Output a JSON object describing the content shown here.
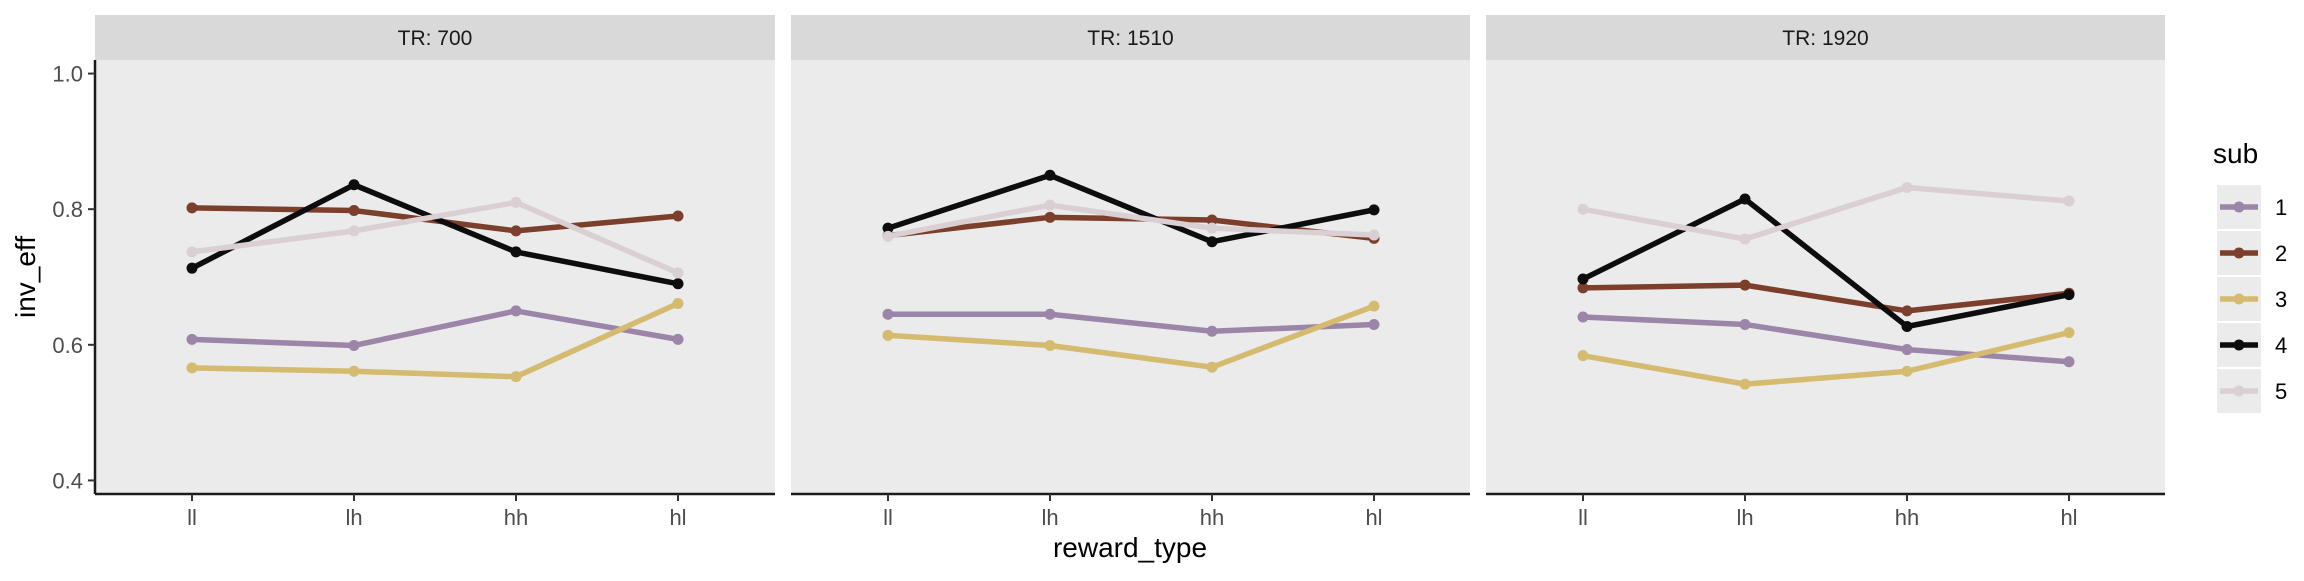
{
  "chart_data": {
    "type": "line",
    "facet_label_prefix": "TR: ",
    "facets": [
      {
        "label": "TR: 700",
        "series": [
          {
            "name": "1",
            "values": [
              0.608,
              0.599,
              0.65,
              0.608
            ]
          },
          {
            "name": "2",
            "values": [
              0.802,
              0.798,
              0.768,
              0.79
            ]
          },
          {
            "name": "3",
            "values": [
              0.566,
              0.561,
              0.553,
              0.661
            ]
          },
          {
            "name": "4",
            "values": [
              0.713,
              0.836,
              0.737,
              0.69
            ]
          },
          {
            "name": "5",
            "values": [
              0.737,
              0.768,
              0.81,
              0.706
            ]
          }
        ]
      },
      {
        "label": "TR: 1510",
        "series": [
          {
            "name": "1",
            "values": [
              0.645,
              0.645,
              0.62,
              0.63
            ]
          },
          {
            "name": "2",
            "values": [
              0.761,
              0.788,
              0.784,
              0.757
            ]
          },
          {
            "name": "3",
            "values": [
              0.614,
              0.599,
              0.567,
              0.657
            ]
          },
          {
            "name": "4",
            "values": [
              0.772,
              0.85,
              0.752,
              0.799
            ]
          },
          {
            "name": "5",
            "values": [
              0.76,
              0.806,
              0.772,
              0.762
            ]
          }
        ]
      },
      {
        "label": "TR: 1920",
        "series": [
          {
            "name": "1",
            "values": [
              0.641,
              0.63,
              0.593,
              0.575
            ]
          },
          {
            "name": "2",
            "values": [
              0.684,
              0.688,
              0.65,
              0.676
            ]
          },
          {
            "name": "3",
            "values": [
              0.584,
              0.542,
              0.561,
              0.618
            ]
          },
          {
            "name": "4",
            "values": [
              0.697,
              0.815,
              0.627,
              0.674
            ]
          },
          {
            "name": "5",
            "values": [
              0.8,
              0.756,
              0.832,
              0.812
            ]
          }
        ]
      }
    ],
    "categories": [
      "ll",
      "lh",
      "hh",
      "hl"
    ],
    "xlabel": "reward_type",
    "ylabel": "inv_eff",
    "ylim": [
      0.38,
      1.02
    ],
    "yticks": [
      "0.4",
      "0.6",
      "0.8",
      "1.0"
    ],
    "grid": false,
    "legend": {
      "title": "sub",
      "position": "right",
      "entries": [
        "1",
        "2",
        "3",
        "4",
        "5"
      ]
    },
    "colors": {
      "1": "#9b85a8",
      "2": "#7b3f2b",
      "3": "#d4bb6f",
      "4": "#0d0d0d",
      "5": "#dacfd3"
    },
    "panel_background": "#ebebeb",
    "strip_background": "#d9d9d9"
  }
}
